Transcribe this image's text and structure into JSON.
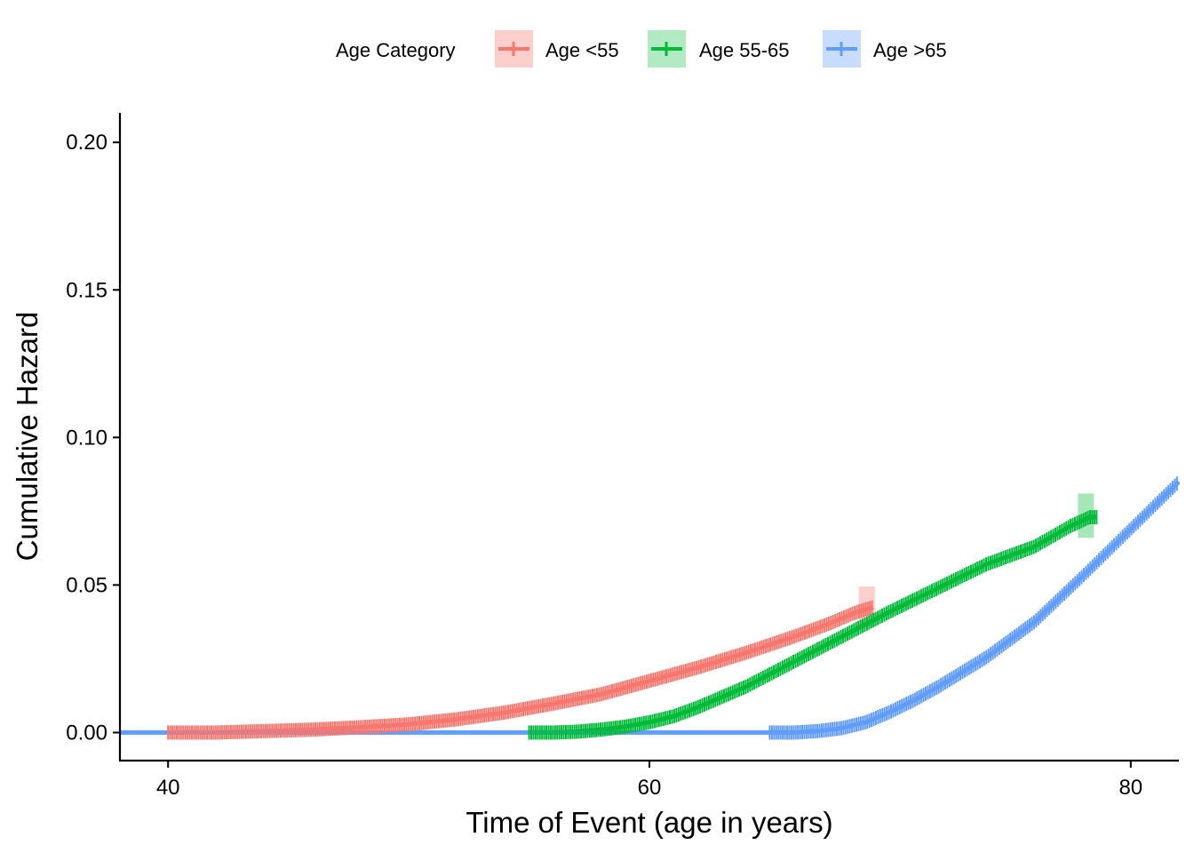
{
  "chart_data": {
    "type": "line",
    "title": "",
    "xlabel": "Time of Event (age in years)",
    "ylabel": "Cumulative Hazard",
    "xlim": [
      38,
      82
    ],
    "ylim": [
      -0.0095,
      0.21
    ],
    "x_ticks": [
      40,
      60,
      80
    ],
    "x_tick_labels": [
      "40",
      "60",
      "80"
    ],
    "y_ticks": [
      0,
      0.05,
      0.1,
      0.15,
      0.2
    ],
    "y_tick_labels": [
      "0.00",
      "0.05",
      "0.10",
      "0.15",
      "0.20"
    ],
    "grid": false,
    "legend": {
      "title": "Age Category",
      "position": "top",
      "entries": [
        "Age <55",
        "Age 55-65",
        "Age >65"
      ]
    },
    "series": [
      {
        "name": "Age <55",
        "color": "#F8766D",
        "x": [
          40,
          42,
          44,
          46,
          48,
          50,
          52,
          54,
          56,
          58,
          60,
          62,
          64,
          66,
          67.5,
          68.5,
          69.3
        ],
        "y": [
          0,
          0,
          0.0005,
          0.001,
          0.0018,
          0.0028,
          0.0045,
          0.0068,
          0.0098,
          0.013,
          0.0175,
          0.022,
          0.027,
          0.0325,
          0.037,
          0.0405,
          0.0425
        ],
        "ci_end": {
          "x": 69.0,
          "lower": 0.036,
          "upper": 0.0495
        }
      },
      {
        "name": "Age 55-65",
        "color": "#00BA38",
        "x": [
          55,
          56,
          57,
          58,
          59,
          60,
          61,
          62,
          63,
          64,
          66,
          68,
          70,
          72,
          74,
          76,
          77.5,
          78.3,
          78.6
        ],
        "y": [
          0,
          0,
          0.0003,
          0.001,
          0.002,
          0.0035,
          0.0055,
          0.0085,
          0.012,
          0.0155,
          0.024,
          0.0325,
          0.041,
          0.049,
          0.057,
          0.063,
          0.07,
          0.073,
          0.073
        ],
        "ci_end": {
          "x": 78.1,
          "lower": 0.066,
          "upper": 0.081
        }
      },
      {
        "name": "Age >65",
        "color": "#619CFF",
        "x": [
          38,
          52,
          65,
          66,
          67,
          68,
          69,
          70,
          71,
          72,
          74,
          76,
          78,
          80,
          82
        ],
        "y": [
          0,
          0,
          0,
          0,
          0.0005,
          0.0015,
          0.0035,
          0.007,
          0.011,
          0.0155,
          0.0255,
          0.0375,
          0.053,
          0.069,
          0.085
        ]
      }
    ]
  }
}
